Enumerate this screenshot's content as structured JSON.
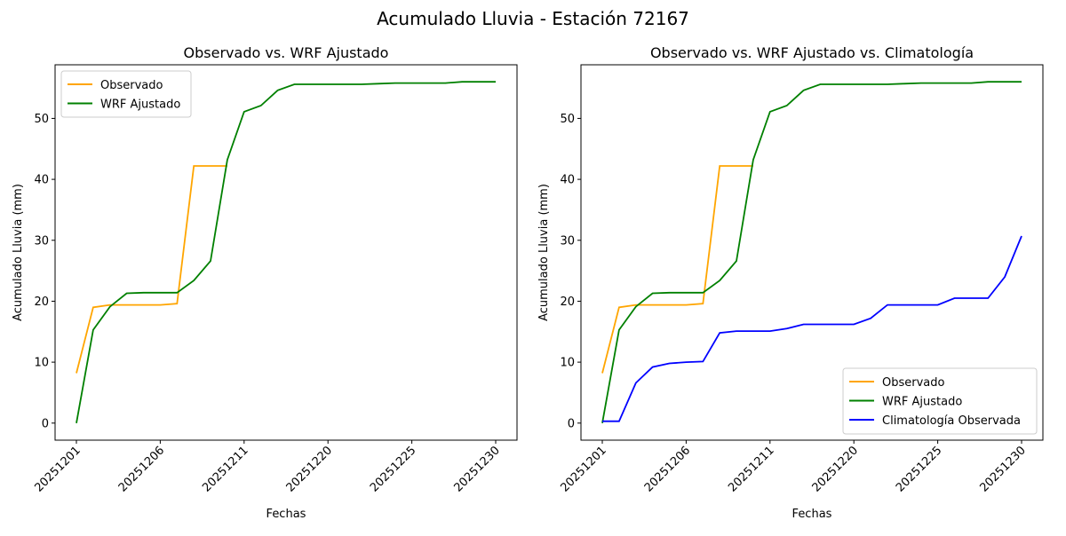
{
  "suptitle": "Acumulado Lluvia - Estación 72167",
  "chart_data": [
    {
      "type": "line",
      "title": "Observado vs. WRF Ajustado",
      "xlabel": "Fechas",
      "ylabel": "Acumulado Lluvia (mm)",
      "ylim": [
        -2.8,
        58.8
      ],
      "yticks": [
        0,
        10,
        20,
        30,
        40,
        50
      ],
      "xtick_labels": [
        "20251201",
        "20251206",
        "20251211",
        "20251220",
        "20251225",
        "20251230"
      ],
      "xtick_indices": [
        0,
        5,
        10,
        15,
        20,
        25
      ],
      "legend": "upper-left",
      "series": [
        {
          "name": "Observado",
          "color": "#ffa500",
          "values": [
            8.2,
            19.0,
            19.4,
            19.4,
            19.4,
            19.4,
            19.6,
            42.2,
            42.2,
            42.2,
            null,
            null,
            null,
            null,
            null,
            null,
            null,
            null,
            null,
            null,
            null,
            null,
            null,
            null,
            null,
            null
          ]
        },
        {
          "name": "WRF Ajustado",
          "color": "#008000",
          "values": [
            0,
            15.3,
            19.1,
            21.3,
            21.4,
            21.4,
            21.4,
            23.4,
            26.6,
            43.2,
            51.1,
            52.1,
            54.6,
            55.6,
            55.6,
            55.6,
            55.6,
            55.6,
            55.7,
            55.8,
            55.8,
            55.8,
            55.8,
            56.0,
            56.0,
            56.0
          ]
        }
      ]
    },
    {
      "type": "line",
      "title": "Observado vs. WRF Ajustado vs. Climatología",
      "xlabel": "Fechas",
      "ylabel": "Acumulado Lluvia (mm)",
      "ylim": [
        -2.8,
        58.8
      ],
      "yticks": [
        0,
        10,
        20,
        30,
        40,
        50
      ],
      "xtick_labels": [
        "20251201",
        "20251206",
        "20251211",
        "20251220",
        "20251225",
        "20251230"
      ],
      "xtick_indices": [
        0,
        5,
        10,
        15,
        20,
        25
      ],
      "legend": "lower-right",
      "series": [
        {
          "name": "Observado",
          "color": "#ffa500",
          "values": [
            8.2,
            19.0,
            19.4,
            19.4,
            19.4,
            19.4,
            19.6,
            42.2,
            42.2,
            42.2,
            null,
            null,
            null,
            null,
            null,
            null,
            null,
            null,
            null,
            null,
            null,
            null,
            null,
            null,
            null,
            null
          ]
        },
        {
          "name": "WRF Ajustado",
          "color": "#008000",
          "values": [
            0,
            15.3,
            19.1,
            21.3,
            21.4,
            21.4,
            21.4,
            23.4,
            26.6,
            43.2,
            51.1,
            52.1,
            54.6,
            55.6,
            55.6,
            55.6,
            55.6,
            55.6,
            55.7,
            55.8,
            55.8,
            55.8,
            55.8,
            56.0,
            56.0,
            56.0
          ]
        },
        {
          "name": "Climatología Observada",
          "color": "#0000ff",
          "values": [
            0.3,
            0.3,
            6.6,
            9.2,
            9.8,
            10.0,
            10.1,
            14.8,
            15.1,
            15.1,
            15.1,
            15.5,
            16.2,
            16.2,
            16.2,
            16.2,
            17.2,
            19.4,
            19.4,
            19.4,
            19.4,
            20.5,
            20.5,
            20.5,
            24.0,
            30.7
          ]
        }
      ]
    }
  ]
}
